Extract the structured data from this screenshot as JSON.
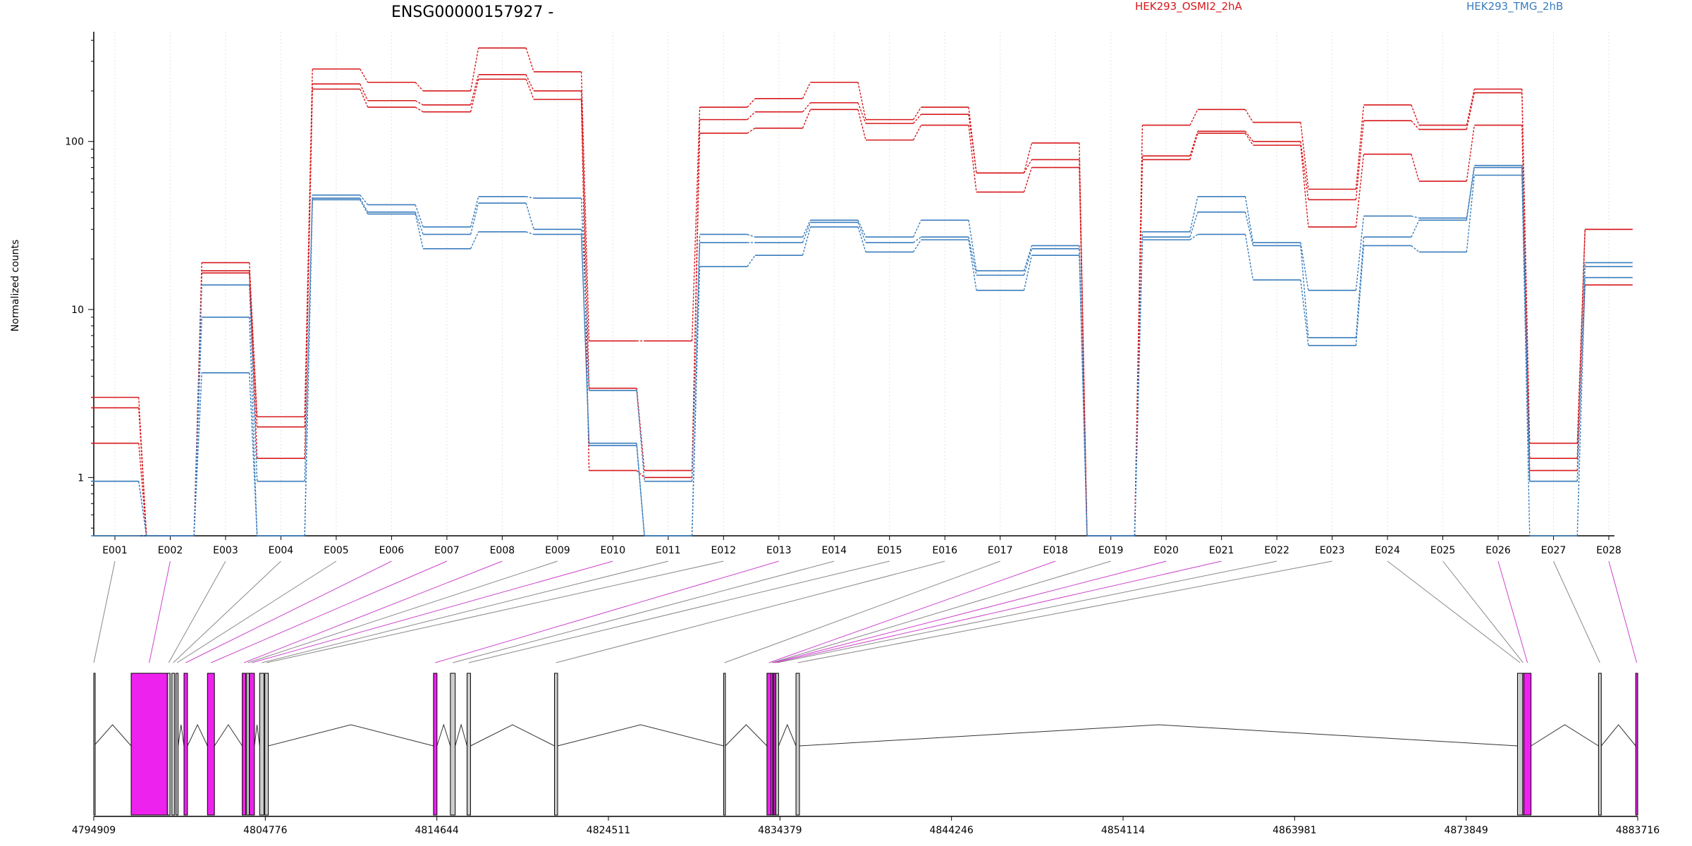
{
  "chart_data": {
    "type": "line",
    "title": "ENSG00000157927 -",
    "ylabel": "Normalized counts",
    "xlabel": "",
    "y_scale": "log10",
    "ylim": [
      0.45,
      450
    ],
    "y_ticks": [
      1,
      10,
      100
    ],
    "y_tick_labels": [
      "1",
      "10",
      "100"
    ],
    "grid": "vertical dotted lines at each exon",
    "legend_placement": "top-right",
    "categories": [
      "E001",
      "E002",
      "E003",
      "E004",
      "E005",
      "E006",
      "E007",
      "E008",
      "E009",
      "E010",
      "E011",
      "E012",
      "E013",
      "E014",
      "E015",
      "E016",
      "E017",
      "E018",
      "E019",
      "E020",
      "E021",
      "E022",
      "E023",
      "E024",
      "E025",
      "E026",
      "E027",
      "E028"
    ],
    "groups": [
      {
        "name": "HEK293_OSMI2_2hA",
        "color": "#d7191c"
      },
      {
        "name": "HEK293_TMG_2hB",
        "color": "#3a7dbd"
      }
    ],
    "series": [
      {
        "group": 0,
        "values": [
          3.0,
          0.45,
          19,
          2.3,
          270,
          225,
          200,
          360,
          260,
          6.5,
          6.5,
          160,
          180,
          225,
          135,
          160,
          65,
          98,
          0.45,
          125,
          155,
          130,
          52,
          165,
          125,
          205,
          1.6,
          30
        ]
      },
      {
        "group": 0,
        "values": [
          2.6,
          0.45,
          17,
          2.0,
          220,
          175,
          165,
          250,
          200,
          3.4,
          1.1,
          135,
          150,
          170,
          128,
          145,
          65,
          78,
          0.45,
          82,
          115,
          100,
          45,
          133,
          118,
          195,
          1.3,
          30
        ]
      },
      {
        "group": 0,
        "values": [
          1.6,
          0.45,
          16.5,
          1.3,
          205,
          160,
          150,
          235,
          178,
          1.1,
          1.0,
          112,
          120,
          155,
          102,
          125,
          50,
          70,
          0.45,
          78,
          112,
          95,
          31,
          84,
          58,
          125,
          1.1,
          14
        ]
      },
      {
        "group": 1,
        "values": [
          0.95,
          0.45,
          14,
          0.95,
          48,
          42,
          31,
          47,
          46,
          3.3,
          0.95,
          28,
          27,
          34,
          27,
          34,
          17,
          24,
          0.45,
          29,
          47,
          25,
          13,
          36,
          35,
          72,
          0.95,
          19
        ]
      },
      {
        "group": 1,
        "values": [
          0.95,
          0.45,
          9,
          0.45,
          46,
          38,
          28,
          43,
          30,
          1.6,
          0.45,
          25,
          25,
          33,
          25,
          27,
          16,
          23,
          0.45,
          27,
          38,
          24,
          6.8,
          27,
          34,
          70,
          0.95,
          18
        ]
      },
      {
        "group": 1,
        "values": [
          0.45,
          0.45,
          4.2,
          0.45,
          45,
          37,
          23,
          29,
          28,
          1.55,
          0.45,
          18,
          21,
          31,
          22,
          26,
          13,
          21,
          0.45,
          26,
          28,
          15,
          6.1,
          24,
          22,
          63,
          0.45,
          15.5
        ]
      }
    ],
    "gene_model": {
      "x_ticks": [
        4794909,
        4804776,
        4814644,
        4824511,
        4834379,
        4844246,
        4854114,
        4863981,
        4873849,
        4883716
      ],
      "x_range": [
        4794909,
        4883716
      ],
      "exons": [
        {
          "id": "E001",
          "start": 4794909,
          "end": 4794915,
          "highlight": false
        },
        {
          "id": "E002",
          "start": 4797060,
          "end": 4799140,
          "highlight": true
        },
        {
          "id": "E003",
          "start": 4799140,
          "end": 4799300,
          "highlight": false
        },
        {
          "id": "E004",
          "start": 4799400,
          "end": 4799560,
          "highlight": false
        },
        {
          "id": "E005",
          "start": 4799640,
          "end": 4799760,
          "highlight": false
        },
        {
          "id": "E006",
          "start": 4800100,
          "end": 4800300,
          "highlight": true
        },
        {
          "id": "E007",
          "start": 4801450,
          "end": 4801850,
          "highlight": true
        },
        {
          "id": "E008",
          "start": 4803450,
          "end": 4803650,
          "highlight": true
        },
        {
          "id": "E009",
          "start": 4803700,
          "end": 4803850,
          "highlight": false
        },
        {
          "id": "E010",
          "start": 4803860,
          "end": 4804150,
          "highlight": true
        },
        {
          "id": "E011",
          "start": 4804450,
          "end": 4804700,
          "highlight": false
        },
        {
          "id": "E012",
          "start": 4804750,
          "end": 4804950,
          "highlight": false
        },
        {
          "id": "E013",
          "start": 4814450,
          "end": 4814650,
          "highlight": true
        },
        {
          "id": "E014",
          "start": 4815420,
          "end": 4815700,
          "highlight": false
        },
        {
          "id": "E015",
          "start": 4816380,
          "end": 4816580,
          "highlight": false
        },
        {
          "id": "E016",
          "start": 4821410,
          "end": 4821590,
          "highlight": false
        },
        {
          "id": "E017",
          "start": 4831140,
          "end": 4831240,
          "highlight": false
        },
        {
          "id": "E018",
          "start": 4833630,
          "end": 4833870,
          "highlight": true
        },
        {
          "id": "E019",
          "start": 4833870,
          "end": 4833950,
          "highlight": false
        },
        {
          "id": "E020",
          "start": 4833950,
          "end": 4834030,
          "highlight": true
        },
        {
          "id": "E021",
          "start": 4834030,
          "end": 4834140,
          "highlight": true
        },
        {
          "id": "E022",
          "start": 4834140,
          "end": 4834300,
          "highlight": false
        },
        {
          "id": "E023",
          "start": 4835300,
          "end": 4835500,
          "highlight": false
        },
        {
          "id": "E024",
          "start": 4876800,
          "end": 4877100,
          "highlight": false
        },
        {
          "id": "E025",
          "start": 4877100,
          "end": 4877150,
          "highlight": false
        },
        {
          "id": "E026",
          "start": 4877170,
          "end": 4877580,
          "highlight": true
        },
        {
          "id": "E027",
          "start": 4881460,
          "end": 4881620,
          "highlight": false
        },
        {
          "id": "E028",
          "start": 4883600,
          "end": 4883716,
          "highlight": true
        }
      ]
    }
  },
  "colors": {
    "group_a": "#d7191c",
    "group_b": "#3a7dbd",
    "highlight_exon": "#ee22ee",
    "plain_exon": "#cccccc",
    "connector_plain": "#888888",
    "connector_highlight": "#cc44cc"
  }
}
